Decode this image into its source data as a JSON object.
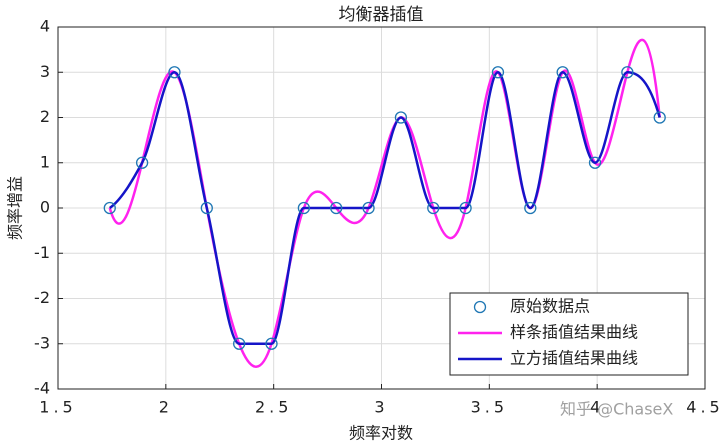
{
  "chart_data": {
    "type": "line",
    "title": "均衡器插值",
    "x_label": "频率对数",
    "y_label": "频率增益",
    "x": [
      1.74,
      1.89,
      2.04,
      2.19,
      2.34,
      2.49,
      2.64,
      2.79,
      2.94,
      3.09,
      3.24,
      3.39,
      3.54,
      3.69,
      3.84,
      3.99,
      4.14,
      4.29
    ],
    "series": [
      {
        "name": "原始数据点",
        "color": "#1f77b4",
        "marker": "circle",
        "values": [
          0,
          1,
          3,
          0,
          -3,
          -3,
          0,
          0,
          0,
          2,
          0,
          0,
          3,
          0,
          3,
          1,
          3,
          2
        ]
      },
      {
        "name": "样条插值结果曲线",
        "color": "#ff22ee",
        "interpolation": "spline",
        "values": [
          0,
          1,
          3,
          0,
          -3,
          -3,
          0,
          0,
          0,
          2,
          0,
          0,
          3,
          0,
          3,
          1,
          3,
          2
        ]
      },
      {
        "name": "立方插值结果曲线",
        "color": "#1515c8",
        "interpolation": "pchip",
        "values": [
          0,
          1,
          3,
          0,
          -3,
          -3,
          0,
          0,
          0,
          2,
          0,
          0,
          3,
          0,
          3,
          1,
          3,
          2
        ]
      }
    ],
    "xlim": [
      1.5,
      4.5
    ],
    "xticks": [
      1.5,
      2,
      2.5,
      3,
      3.5,
      4,
      4.5
    ],
    "ylim": [
      -4,
      4
    ],
    "yticks": [
      -4,
      -3,
      -2,
      -1,
      0,
      1,
      2,
      3,
      4
    ],
    "grid": true,
    "legend": "lower right",
    "watermark": "知乎 @ChaseX"
  }
}
